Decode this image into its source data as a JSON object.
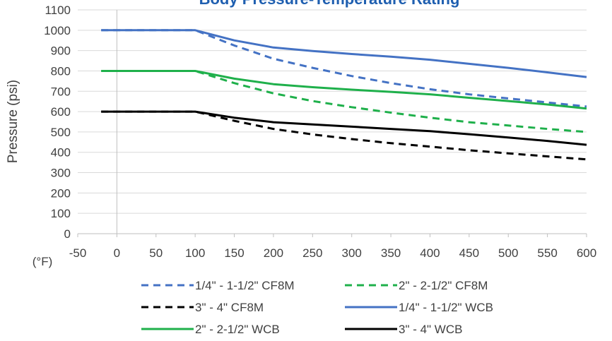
{
  "chart_data": {
    "type": "line",
    "title": "Body Pressure-Temperature Rating",
    "title_color": "#1f5fb0",
    "ylabel": "Pressure (psi)",
    "x_unit_label": "(°F)",
    "ylim": [
      0,
      1100
    ],
    "xlim": [
      -50,
      600
    ],
    "y_ticks": [
      0,
      100,
      200,
      300,
      400,
      500,
      600,
      700,
      800,
      900,
      1000,
      1100
    ],
    "x_ticks": [
      -50,
      0,
      50,
      100,
      150,
      200,
      250,
      300,
      350,
      400,
      450,
      500,
      550,
      600
    ],
    "grid": "horizontal",
    "legend_position": "bottom",
    "series": [
      {
        "name": "1/4\" - 1-1/2\" CF8M",
        "color": "#4472c4",
        "dash": true,
        "x": [
          -20,
          100,
          150,
          200,
          250,
          300,
          350,
          400,
          450,
          500,
          550,
          600
        ],
        "y": [
          1000,
          1000,
          925,
          860,
          815,
          775,
          740,
          710,
          685,
          665,
          645,
          625
        ]
      },
      {
        "name": "2\" - 2-1/2\" CF8M",
        "color": "#1fb04b",
        "dash": true,
        "x": [
          -20,
          100,
          150,
          200,
          250,
          300,
          350,
          400,
          450,
          500,
          550,
          600
        ],
        "y": [
          800,
          800,
          740,
          690,
          652,
          622,
          595,
          570,
          548,
          532,
          515,
          500
        ]
      },
      {
        "name": "3\" - 4\" CF8M",
        "color": "#000000",
        "dash": true,
        "x": [
          -20,
          100,
          150,
          200,
          250,
          300,
          350,
          400,
          450,
          500,
          550,
          600
        ],
        "y": [
          600,
          600,
          555,
          515,
          488,
          465,
          445,
          428,
          410,
          395,
          380,
          365
        ]
      },
      {
        "name": "1/4\" - 1-1/2\" WCB",
        "color": "#4472c4",
        "dash": false,
        "x": [
          -20,
          100,
          150,
          200,
          250,
          300,
          350,
          400,
          450,
          500,
          550,
          600
        ],
        "y": [
          1000,
          1000,
          950,
          915,
          898,
          883,
          870,
          855,
          835,
          815,
          793,
          770
        ]
      },
      {
        "name": "2\" - 2-1/2\" WCB",
        "color": "#1fb04b",
        "dash": false,
        "x": [
          -20,
          100,
          150,
          200,
          250,
          300,
          350,
          400,
          450,
          500,
          550,
          600
        ],
        "y": [
          800,
          800,
          762,
          735,
          720,
          708,
          697,
          685,
          668,
          652,
          635,
          615
        ]
      },
      {
        "name": "3\" - 4\" WCB",
        "color": "#000000",
        "dash": false,
        "x": [
          -20,
          100,
          150,
          200,
          250,
          300,
          350,
          400,
          450,
          500,
          550,
          600
        ],
        "y": [
          600,
          600,
          570,
          548,
          537,
          526,
          515,
          504,
          489,
          473,
          456,
          437
        ]
      }
    ]
  }
}
